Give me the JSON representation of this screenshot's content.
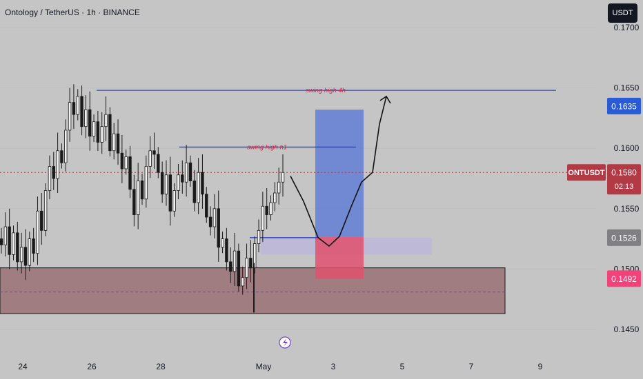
{
  "header": {
    "title": "Ontology / TetherUS · 1h · BINANCE",
    "currency_button": "USDT"
  },
  "colors": {
    "background": "#c5c5c5",
    "level_line": "#2a44c4",
    "annotation": "#e02040",
    "candle": "#1a1a1a",
    "target_badge": "#2a5bd7",
    "symbol_badge": "#b23a45",
    "entry_badge": "#7f7f84",
    "stop_badge": "#f0437a"
  },
  "chart_data": {
    "type": "candlestick",
    "symbol": "ONTUSDT",
    "timeframe": "1h",
    "exchange": "BINANCE",
    "x_ticks": [
      "24",
      "26",
      "28",
      "May",
      "3",
      "5",
      "7",
      "9"
    ],
    "y_ticks": [
      0.17,
      0.165,
      0.16,
      0.155,
      0.15,
      0.145
    ],
    "y_range": [
      0.1435,
      0.1715
    ],
    "last_price": 0.158,
    "countdown": "02:13",
    "price_path": [
      0.1525,
      0.152,
      0.1535,
      0.1512,
      0.153,
      0.1506,
      0.1518,
      0.1503,
      0.1525,
      0.1513,
      0.1548,
      0.1532,
      0.1565,
      0.1585,
      0.1575,
      0.1598,
      0.1588,
      0.1615,
      0.1638,
      0.1628,
      0.1643,
      0.1618,
      0.1632,
      0.161,
      0.1622,
      0.1605,
      0.1618,
      0.1628,
      0.1598,
      0.1612,
      0.1596,
      0.1583,
      0.1593,
      0.1566,
      0.1545,
      0.1573,
      0.1558,
      0.1585,
      0.1598,
      0.1595,
      0.158,
      0.1562,
      0.1578,
      0.1548,
      0.1565,
      0.1578,
      0.1572,
      0.1588,
      0.1573,
      0.1555,
      0.158,
      0.1562,
      0.1543,
      0.1535,
      0.155,
      0.1518,
      0.1525,
      0.1506,
      0.1498,
      0.1515,
      0.1486,
      0.1493,
      0.1509,
      0.1501,
      0.1521,
      0.1532,
      0.1552,
      0.1545,
      0.1555,
      0.1563,
      0.1572,
      0.158
    ],
    "levels": [
      {
        "label": "swing high 4h",
        "price": 0.1648
      },
      {
        "label": "swing high h1",
        "price": 0.1601
      }
    ],
    "price_badges": [
      {
        "name": "target",
        "price": 0.1635,
        "text": "0.1635"
      },
      {
        "name": "entry",
        "price": 0.1526,
        "text": "0.1526"
      },
      {
        "name": "stop",
        "price": 0.1492,
        "text": "0.1492"
      }
    ],
    "zones": [
      {
        "name": "profit-zone",
        "from": 0.1527,
        "to": 0.1632
      },
      {
        "name": "loss-zone",
        "from": 0.1492,
        "to": 0.1527
      },
      {
        "name": "entry-zone",
        "from": 0.1512,
        "to": 0.1526
      },
      {
        "name": "demand-zone",
        "from": 0.1463,
        "to": 0.1501
      }
    ],
    "projection": [
      0.1577,
      0.1556,
      0.1526,
      0.1519,
      0.1527,
      0.1553,
      0.1572,
      0.158,
      0.162,
      0.1643
    ]
  }
}
